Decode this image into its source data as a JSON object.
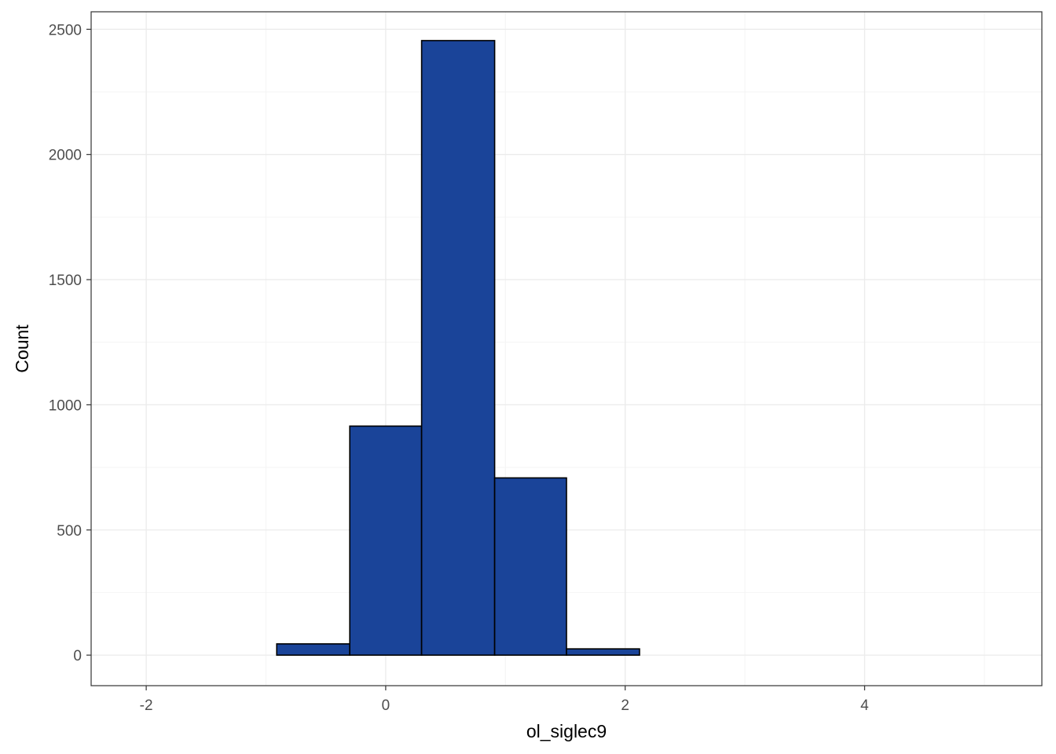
{
  "chart_data": {
    "type": "bar",
    "title": "",
    "xlabel": "ol_siglec9",
    "ylabel": "Count",
    "xlim": [
      -2.46,
      5.48
    ],
    "ylim": [
      -122,
      2570
    ],
    "x_ticks": [
      -2,
      0,
      2,
      4
    ],
    "y_ticks": [
      0,
      500,
      1000,
      1500,
      2000,
      2500
    ],
    "x_tick_labels": [
      "-2",
      "0",
      "2",
      "4"
    ],
    "y_tick_labels": [
      "0",
      "500",
      "1000",
      "1500",
      "2000",
      "2500"
    ],
    "grid": true,
    "bins": [
      {
        "x0": -2.12,
        "x1": -1.51,
        "count": 0
      },
      {
        "x0": -1.51,
        "x1": -0.91,
        "count": 0
      },
      {
        "x0": -0.91,
        "x1": -0.3,
        "count": 45
      },
      {
        "x0": -0.3,
        "x1": 0.3,
        "count": 915
      },
      {
        "x0": 0.3,
        "x1": 0.91,
        "count": 2455
      },
      {
        "x0": 0.91,
        "x1": 1.51,
        "count": 708
      },
      {
        "x0": 1.51,
        "x1": 2.12,
        "count": 25
      },
      {
        "x0": 2.12,
        "x1": 2.72,
        "count": 0
      },
      {
        "x0": 2.72,
        "x1": 3.33,
        "count": 0
      },
      {
        "x0": 3.33,
        "x1": 3.93,
        "count": 0
      },
      {
        "x0": 3.93,
        "x1": 4.54,
        "count": 0
      },
      {
        "x0": 4.54,
        "x1": 5.14,
        "count": 0
      }
    ],
    "colors": {
      "fill": "#1a4499",
      "outline": "#000000",
      "grid_major": "#ebebeb",
      "grid_minor": "#f4f4f4",
      "panel_border": "#333333"
    }
  }
}
